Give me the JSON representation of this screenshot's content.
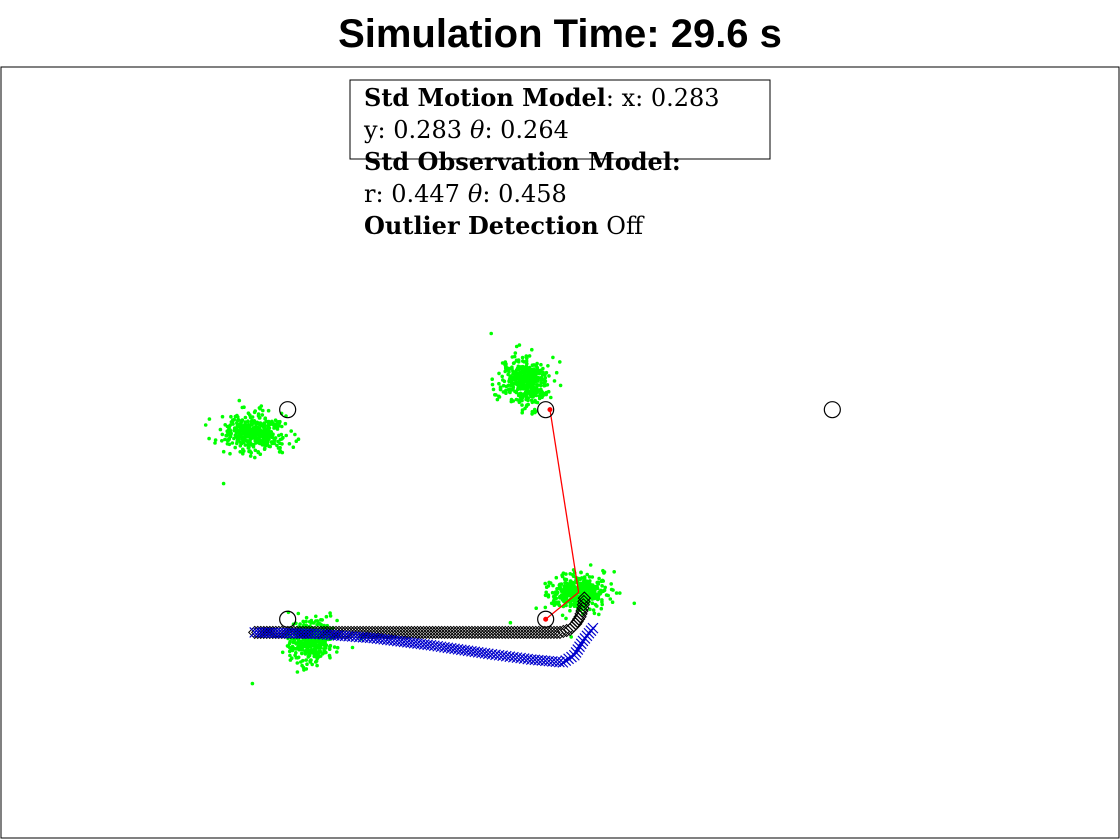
{
  "title": "Simulation Time: 29.6 s",
  "colors": {
    "landmark": "#000000",
    "particles": "#00ff00",
    "true_path": "#000000",
    "estimated_path": "#0000cc",
    "observation_line": "#ff0000"
  },
  "annotation": {
    "line1_bold": "Std Motion Model",
    "line1_rest": ": x: 0.283",
    "line2_y": "y: 0.283",
    "line2_theta_sym": "θ",
    "line2_theta_val": ": 0.264",
    "line3_bold": "Std Observation Model:",
    "line4_r": "r: 0.447",
    "line4_theta_sym": "θ",
    "line4_theta_val": ": 0.458",
    "line5_bold": "Outlier Detection",
    "line5_rest": " Off"
  },
  "chart_data": {
    "type": "scatter",
    "title": "Simulation Time: 29.6 s",
    "xlabel": "",
    "ylabel": "",
    "xlim": [
      0,
      39
    ],
    "ylim": [
      0,
      27
    ],
    "axis_ticks": false,
    "grid": false,
    "landmarks": [
      {
        "x": 10,
        "y": 15
      },
      {
        "x": 19,
        "y": 15
      },
      {
        "x": 29,
        "y": 15
      },
      {
        "x": 10,
        "y": 7.66
      },
      {
        "x": 19,
        "y": 7.66
      }
    ],
    "particle_clusters": [
      {
        "cx": 8.85,
        "cy": 14.2,
        "sx": 0.55,
        "sy": 0.32,
        "n": 420
      },
      {
        "cx": 18.25,
        "cy": 16.0,
        "sx": 0.4,
        "sy": 0.42,
        "n": 420
      },
      {
        "cx": 20.15,
        "cy": 8.6,
        "sx": 0.5,
        "sy": 0.3,
        "n": 420
      },
      {
        "cx": 10.8,
        "cy": 6.9,
        "sx": 0.38,
        "sy": 0.35,
        "n": 420
      }
    ],
    "true_path": [
      [
        8.85,
        7.2
      ],
      [
        12.0,
        7.2
      ],
      [
        16.0,
        7.2
      ],
      [
        19.5,
        7.2
      ],
      [
        19.85,
        7.3
      ],
      [
        20.05,
        7.5
      ],
      [
        20.2,
        7.75
      ],
      [
        20.3,
        8.05
      ],
      [
        20.35,
        8.4
      ]
    ],
    "estimated_path": [
      [
        8.85,
        7.2
      ],
      [
        11.0,
        7.15
      ],
      [
        13.0,
        7.0
      ],
      [
        15.0,
        6.75
      ],
      [
        17.0,
        6.45
      ],
      [
        18.5,
        6.25
      ],
      [
        19.6,
        6.15
      ],
      [
        20.0,
        6.4
      ],
      [
        20.3,
        6.9
      ],
      [
        20.65,
        7.35
      ]
    ],
    "observations": [
      {
        "from": [
          20.15,
          8.6
        ],
        "to": [
          19.15,
          15.0
        ]
      },
      {
        "from": [
          20.15,
          8.6
        ],
        "to": [
          19.0,
          7.66
        ]
      }
    ]
  }
}
